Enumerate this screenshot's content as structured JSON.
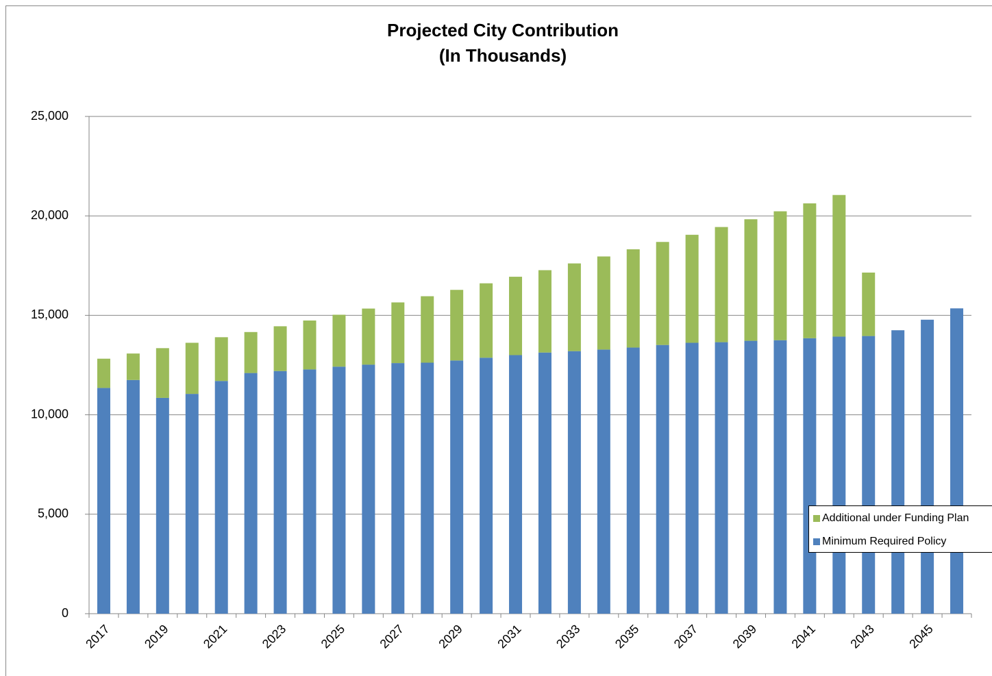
{
  "chart_data": {
    "type": "stacked-bar",
    "title": "Projected City Contribution",
    "subtitle": "(In Thousands)",
    "categories": [
      "2017",
      null,
      "2019",
      null,
      "2021",
      null,
      "2023",
      null,
      "2025",
      null,
      "2027",
      null,
      "2029",
      null,
      "2031",
      null,
      "2033",
      null,
      "2035",
      null,
      "2037",
      null,
      "2039",
      null,
      "2041",
      null,
      "2043",
      null,
      "2045",
      null
    ],
    "series": [
      {
        "name": "Minimum Required Policy",
        "color": "#4f81bd",
        "values": [
          11350,
          11750,
          10850,
          11050,
          11700,
          12100,
          12200,
          12280,
          12420,
          12520,
          12600,
          12620,
          12730,
          12870,
          13000,
          13130,
          13200,
          13280,
          13380,
          13510,
          13620,
          13650,
          13720,
          13750,
          13850,
          13930,
          13960,
          14250,
          14780,
          15350
        ]
      },
      {
        "name": "Additional under Funding Plan",
        "color": "#9bbb59",
        "values": [
          1470,
          1330,
          2500,
          2570,
          2200,
          2060,
          2250,
          2460,
          2610,
          2820,
          3050,
          3340,
          3550,
          3740,
          3940,
          4140,
          4410,
          4680,
          4940,
          5180,
          5430,
          5790,
          6110,
          6480,
          6780,
          7120,
          3190,
          0,
          0,
          0
        ]
      }
    ],
    "ylim": [
      0,
      25000
    ],
    "yticks": [
      0,
      {
        "value": 5000,
        "label": "5,000"
      },
      {
        "value": 10000,
        "label": "10,000"
      },
      {
        "value": 15000,
        "label": "15,000"
      },
      {
        "value": 20000,
        "label": "20,000"
      },
      {
        "value": 25000,
        "label": "25,000"
      }
    ],
    "grid": true,
    "legend": "right"
  }
}
